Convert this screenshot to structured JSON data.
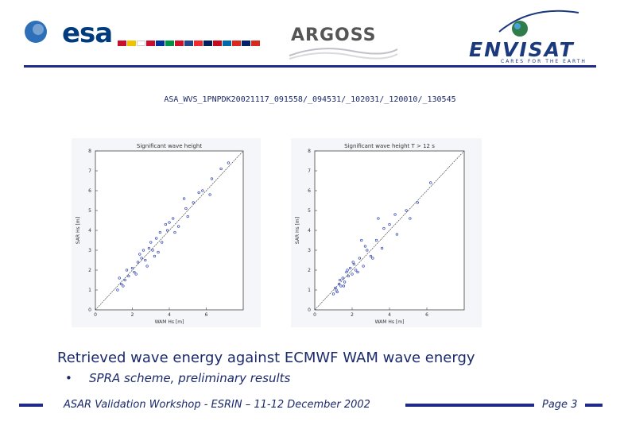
{
  "header": {
    "esa_wordmark": "esa",
    "argoss_wordmark": "ARGOSS",
    "envisat_wordmark": "ENVISAT",
    "envisat_tagline": "CARES FOR THE EARTH",
    "accent_color": "#1f2a8a"
  },
  "file_id": "ASA_WVS_1PNPDK20021117_091558/_094531/_102031/_120010/_130545",
  "plots": [
    {
      "title": "Significant wave height",
      "xlabel": "WAM Hs [m]",
      "ylabel": "SAR Hs [m]"
    },
    {
      "title": "Significant wave height T > 12 s",
      "xlabel": "WAM Hs [m]",
      "ylabel": "SAR Hs [m]"
    }
  ],
  "chart_data": [
    {
      "type": "scatter",
      "title": "Significant wave height",
      "xlabel": "WAM Hs [m]",
      "ylabel": "SAR Hs [m]",
      "x_ticks": [
        "0",
        "2",
        "4",
        "6"
      ],
      "y_ticks": [
        "0",
        "1",
        "2",
        "3",
        "4",
        "5",
        "6",
        "7",
        "8"
      ],
      "xlim": [
        0,
        8
      ],
      "ylim": [
        0,
        8
      ],
      "reference_line": "y = x",
      "series": [
        {
          "x": [
            1.2,
            1.4,
            1.6,
            1.8,
            2.0,
            2.1,
            2.3,
            2.5,
            2.7,
            2.9,
            3.1,
            3.3,
            3.6,
            3.9,
            4.2,
            4.5,
            4.9,
            5.3,
            5.8,
            6.3,
            6.8,
            7.2,
            1.3,
            1.7,
            2.2,
            2.6,
            3.0,
            3.4,
            3.8,
            4.3,
            5.0,
            5.6,
            6.2,
            1.5,
            2.4,
            3.2,
            4.0,
            4.8,
            2.8,
            3.5
          ],
          "y": [
            1.0,
            1.3,
            1.5,
            1.7,
            2.1,
            1.9,
            2.4,
            2.6,
            2.5,
            3.1,
            3.0,
            3.6,
            3.4,
            4.0,
            4.6,
            4.2,
            5.1,
            5.4,
            6.0,
            6.6,
            7.1,
            7.4,
            1.6,
            2.0,
            1.8,
            3.0,
            3.4,
            2.9,
            4.3,
            3.9,
            4.7,
            5.9,
            5.8,
            1.2,
            2.8,
            2.7,
            4.4,
            5.6,
            2.2,
            3.9
          ]
        }
      ]
    },
    {
      "type": "scatter",
      "title": "Significant wave height T > 12 s",
      "xlabel": "WAM Hs [m]",
      "ylabel": "SAR Hs [m]",
      "x_ticks": [
        "0",
        "2",
        "4",
        "6"
      ],
      "y_ticks": [
        "0",
        "1",
        "2",
        "3",
        "4",
        "5",
        "6",
        "7",
        "8"
      ],
      "xlim": [
        0,
        8
      ],
      "ylim": [
        0,
        8
      ],
      "reference_line": "y = x",
      "series": [
        {
          "x": [
            1.0,
            1.1,
            1.2,
            1.3,
            1.4,
            1.5,
            1.6,
            1.7,
            1.8,
            1.9,
            2.0,
            2.1,
            2.2,
            2.4,
            2.6,
            2.8,
            3.0,
            3.3,
            3.6,
            4.0,
            4.4,
            4.9,
            5.5,
            6.2,
            1.15,
            1.35,
            1.55,
            1.75,
            2.05,
            2.3,
            2.7,
            3.1,
            3.7,
            4.3,
            5.1,
            2.5,
            3.4
          ],
          "y": [
            0.8,
            1.1,
            0.9,
            1.3,
            1.2,
            1.6,
            1.4,
            1.9,
            1.7,
            2.1,
            1.8,
            2.3,
            2.0,
            2.6,
            2.2,
            3.0,
            2.7,
            3.5,
            3.1,
            4.3,
            3.8,
            5.0,
            5.4,
            6.4,
            1.0,
            1.5,
            1.2,
            2.0,
            2.4,
            1.9,
            3.2,
            2.6,
            4.1,
            4.8,
            4.6,
            3.5,
            4.6
          ]
        }
      ]
    }
  ],
  "caption": "Retrieved wave energy against ECMWF WAM wave energy",
  "bullet": "SPRA scheme, preliminary results",
  "footer": {
    "text": "ASAR Validation Workshop - ESRIN – 11-12 December 2002",
    "page": "Page 3"
  }
}
